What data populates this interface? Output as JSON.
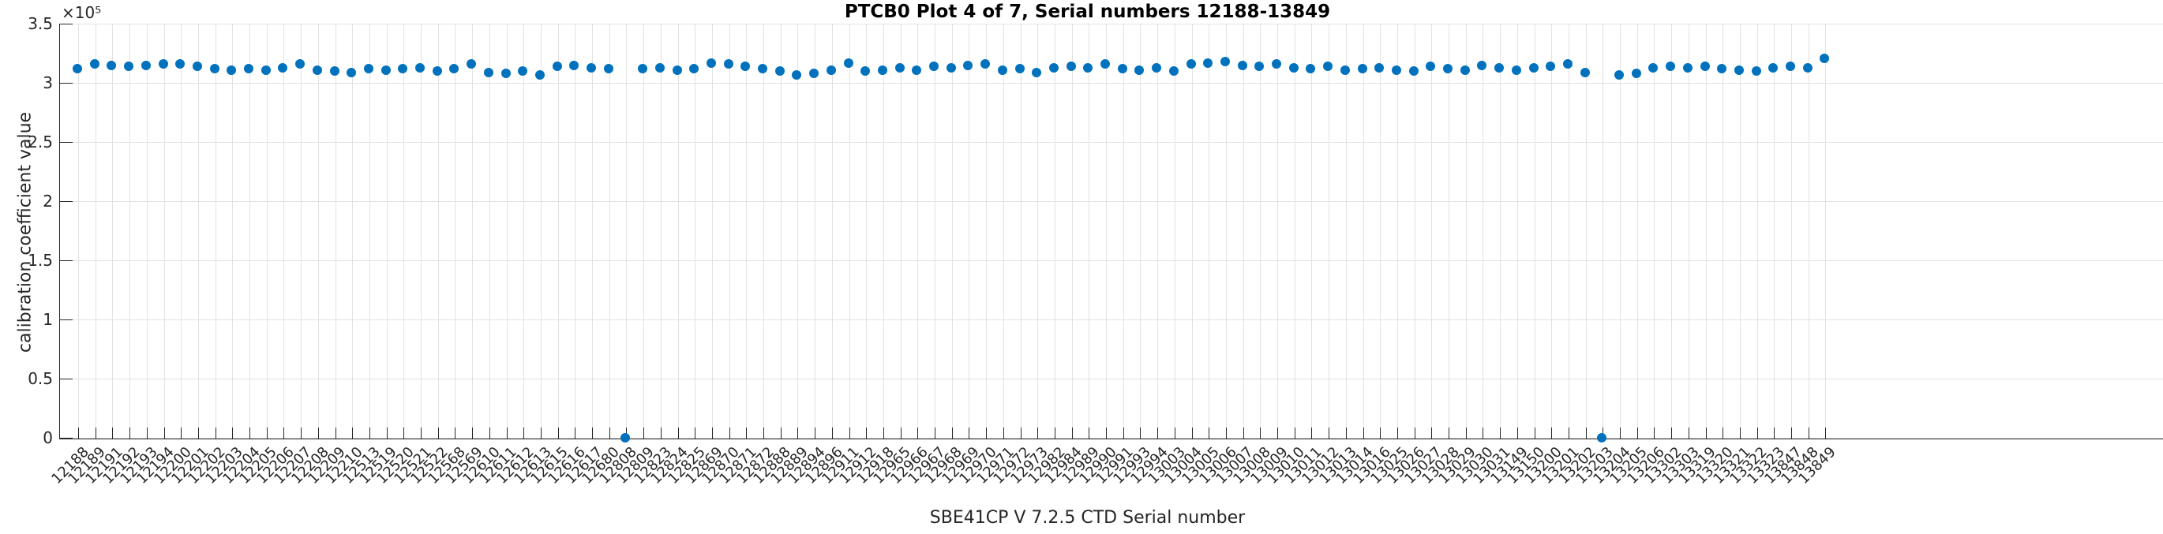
{
  "figure": {
    "title": "PTCB0 Plot 4 of 7, Serial numbers 12188-13849",
    "x_axis_title": "SBE41CP V 7.2.5 CTD Serial number",
    "y_axis_title": "calibration coefficient value",
    "y_exponent_label": "×10⁵"
  },
  "colors": {
    "marker": "#0072BD",
    "grid": "#e2e2e2",
    "axis": "#262626",
    "title_text": "#000000"
  },
  "chart_data": {
    "type": "scatter",
    "title": "PTCB0 Plot 4 of 7, Serial numbers 12188-13849",
    "xlabel": "SBE41CP V 7.2.5 CTD Serial number",
    "ylabel": "calibration coefficient value",
    "grid": true,
    "legend_position": "none",
    "marker_color": "#0072BD",
    "ylim": [
      0,
      350000
    ],
    "y_tick_values": [
      0,
      50000,
      100000,
      150000,
      200000,
      250000,
      300000,
      350000
    ],
    "y_tick_labels": [
      "0",
      "0.5",
      "1",
      "1.5",
      "2",
      "2.5",
      "3",
      "3.5"
    ],
    "y_exponent": "×10⁵",
    "outlier_serials": [
      "12808",
      "13203"
    ],
    "x_categories": [
      "12188",
      "12189",
      "12191",
      "12192",
      "12193",
      "12194",
      "12200",
      "12201",
      "12202",
      "12203",
      "12204",
      "12205",
      "12206",
      "12207",
      "12208",
      "12209",
      "12210",
      "12513",
      "12519",
      "12520",
      "12521",
      "12522",
      "12568",
      "12569",
      "12610",
      "12611",
      "12612",
      "12613",
      "12615",
      "12616",
      "12617",
      "12680",
      "12808",
      "12809",
      "12823",
      "12824",
      "12825",
      "12869",
      "12870",
      "12871",
      "12872",
      "12888",
      "12889",
      "12894",
      "12896",
      "12911",
      "12912",
      "12918",
      "12965",
      "12966",
      "12967",
      "12968",
      "12969",
      "12970",
      "12971",
      "12972",
      "12973",
      "12982",
      "12984",
      "12989",
      "12990",
      "12991",
      "12993",
      "12994",
      "13003",
      "13004",
      "13005",
      "13006",
      "13007",
      "13008",
      "13009",
      "13010",
      "13011",
      "13012",
      "13013",
      "13014",
      "13016",
      "13025",
      "13026",
      "13027",
      "13028",
      "13029",
      "13030",
      "13031",
      "13149",
      "13150",
      "13200",
      "13201",
      "13202",
      "13203",
      "13204",
      "13205",
      "13206",
      "13302",
      "13303",
      "13319",
      "13320",
      "13321",
      "13322",
      "13323",
      "13847",
      "13848",
      "13849"
    ],
    "values": [
      312000,
      316000,
      315000,
      314000,
      315000,
      316000,
      316000,
      314000,
      312000,
      311000,
      312000,
      311000,
      313000,
      316000,
      311000,
      310000,
      309000,
      312000,
      311000,
      312000,
      313000,
      310000,
      312000,
      316000,
      309000,
      308000,
      310000,
      307000,
      314000,
      315000,
      313000,
      312000,
      0,
      312000,
      313000,
      311000,
      312000,
      317000,
      316000,
      314000,
      312000,
      310000,
      307000,
      308000,
      311000,
      317000,
      310000,
      311000,
      313000,
      311000,
      314000,
      313000,
      315000,
      316000,
      311000,
      312000,
      309000,
      313000,
      314000,
      313000,
      316000,
      312000,
      311000,
      313000,
      310000,
      316000,
      317000,
      318000,
      315000,
      314000,
      316000,
      313000,
      312000,
      314000,
      311000,
      312000,
      313000,
      311000,
      310000,
      314000,
      312000,
      311000,
      315000,
      313000,
      311000,
      313000,
      314000,
      316000,
      309000,
      0,
      307000,
      308000,
      313000,
      314000,
      313000,
      314000,
      312000,
      311000,
      310000,
      313000,
      314000,
      313000,
      321000
    ]
  }
}
